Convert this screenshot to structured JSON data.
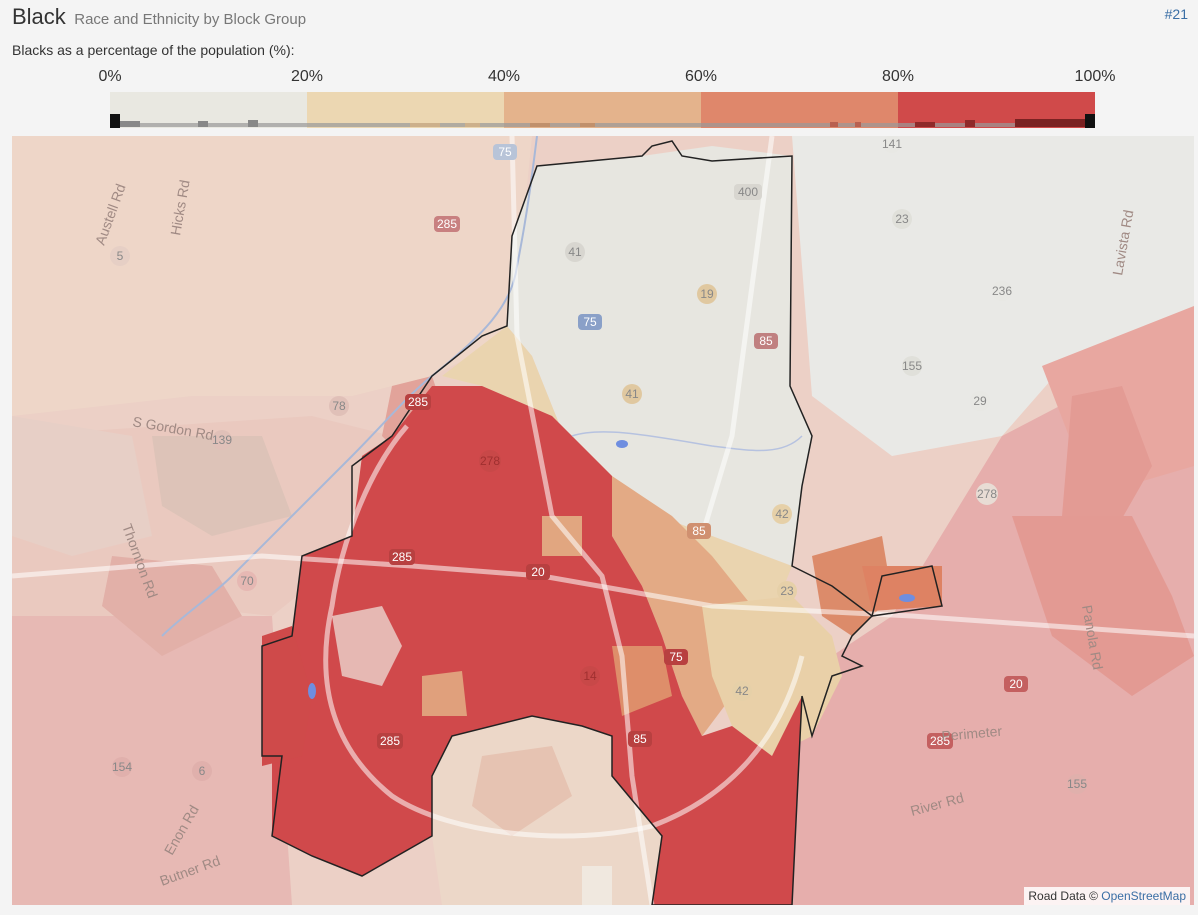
{
  "header": {
    "title": "Black",
    "subtitle": "Race and Ethnicity by Block Group",
    "ref": "#21"
  },
  "legend": {
    "caption": "Blacks as a percentage of the population (%):",
    "ticks": [
      "0%",
      "20%",
      "40%",
      "60%",
      "80%",
      "100%"
    ],
    "bins": [
      {
        "from": 0,
        "to": 20,
        "color": "#e9e8e1"
      },
      {
        "from": 20,
        "to": 40,
        "color": "#ecd7b2"
      },
      {
        "from": 40,
        "to": 60,
        "color": "#e4b38c"
      },
      {
        "from": 60,
        "to": 80,
        "color": "#df876b"
      },
      {
        "from": 80,
        "to": 100,
        "color": "#d04a4a"
      }
    ]
  },
  "map": {
    "roads": [
      "285",
      "285",
      "285",
      "285",
      "285",
      "75",
      "75",
      "75",
      "85",
      "85",
      "85",
      "20",
      "20",
      "400",
      "41",
      "41",
      "19",
      "23",
      "23",
      "278",
      "278",
      "78",
      "42",
      "42",
      "14",
      "155",
      "155",
      "154",
      "139",
      "70",
      "29",
      "236",
      "141",
      "5",
      "6"
    ],
    "street_labels": [
      "Hicks Rd",
      "Austell Rd",
      "S Gordon Rd",
      "Thornton Rd",
      "Perimeter",
      "River Rd",
      "Butner Rd",
      "Enon Rd",
      "Panola Rd",
      "Lavista Rd"
    ],
    "attribution_prefix": "Road Data ©",
    "attribution_link": "OpenStreetMap"
  }
}
